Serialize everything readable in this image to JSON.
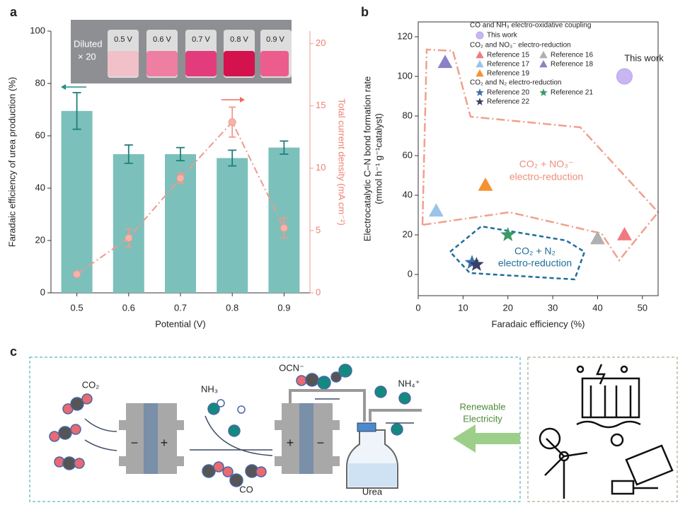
{
  "panel_labels": [
    "a",
    "b",
    "c"
  ],
  "chart_data": [
    {
      "type": "bar",
      "xlabel": "Potential (V)",
      "ylabel": "Faradaic efficiency of urea production (%)",
      "y2label": "Total current density (mA cm⁻²)",
      "categories": [
        "0.5",
        "0.6",
        "0.7",
        "0.8",
        "0.9"
      ],
      "ylim": [
        0,
        100
      ],
      "yticks": [
        0,
        20,
        40,
        60,
        80,
        100
      ],
      "y2lim": [
        0,
        21
      ],
      "y2ticks": [
        0,
        5,
        10,
        15,
        20
      ],
      "series": [
        {
          "type": "bar",
          "color": "#7cc0bb",
          "error_color": "#1f7f7a",
          "values": [
            69.5,
            53,
            53,
            51.5,
            55.5
          ],
          "errors": [
            7,
            3.5,
            2.5,
            3,
            2.5
          ]
        },
        {
          "type": "line",
          "axis": "y2",
          "color": "#ef9a8e",
          "values": [
            1.5,
            4.4,
            9.2,
            13.7,
            5.2
          ],
          "errors": [
            0.1,
            0.7,
            0.4,
            1.2,
            0.8
          ]
        }
      ],
      "inset": {
        "text": [
          "Diluted",
          "× 20"
        ],
        "vial_labels": [
          "0.5 V",
          "0.6 V",
          "0.7 V",
          "0.8 V",
          "0.9 V"
        ]
      }
    },
    {
      "type": "scatter",
      "xlabel": "Faradaic efficiency (%)",
      "ylabel": [
        "Electrocatalytic C–N bond formation rate",
        "(mmol h⁻¹ g⁻¹catalyst)"
      ],
      "xlim": [
        0,
        53.5
      ],
      "xticks": [
        0,
        10,
        20,
        30,
        40,
        50
      ],
      "ylim": [
        -10.7,
        127.5
      ],
      "yticks": [
        0,
        20,
        40,
        60,
        80,
        100,
        120
      ],
      "annotations": {
        "this_work": "This work",
        "no3_region": [
          "CO₂ + NO₃⁻",
          "electro-reduction"
        ],
        "n2_region": [
          "CO₂ + N₂",
          "electro-reduction"
        ]
      },
      "groups": [
        {
          "title": "CO and NH₃ electro-oxidative coupling",
          "series": [
            {
              "name": "This work",
              "marker": "circle",
              "color": "#c8b6f2",
              "x": [
                46
              ],
              "values": [
                100
              ]
            }
          ]
        },
        {
          "title": "CO₂ and NO₃⁻ electro-reduction",
          "series": [
            {
              "name": "Reference 15",
              "marker": "triangle",
              "color": "#f07a80",
              "x": [
                46
              ],
              "values": [
                20
              ]
            },
            {
              "name": "Reference 16",
              "marker": "triangle",
              "color": "#b0b0b0",
              "x": [
                40
              ],
              "values": [
                18
              ]
            },
            {
              "name": "Reference 17",
              "marker": "triangle",
              "color": "#9cc4e8",
              "x": [
                4
              ],
              "values": [
                32
              ]
            },
            {
              "name": "Reference 18",
              "marker": "triangle",
              "color": "#8a82c8",
              "x": [
                6
              ],
              "values": [
                107
              ]
            },
            {
              "name": "Reference 19",
              "marker": "triangle",
              "color": "#f5922e",
              "x": [
                15
              ],
              "values": [
                45
              ]
            }
          ]
        },
        {
          "title": "CO₂ and N₂ electro-reduction",
          "series": [
            {
              "name": "Reference 20",
              "marker": "star",
              "color": "#3c6fa8",
              "x": [
                12
              ],
              "values": [
                6
              ]
            },
            {
              "name": "Reference 21",
              "marker": "star",
              "color": "#3a9a66",
              "x": [
                20
              ],
              "values": [
                20
              ]
            },
            {
              "name": "Reference 22",
              "marker": "star",
              "color": "#3b3f66",
              "x": [
                13
              ],
              "values": [
                5
              ]
            }
          ]
        }
      ]
    }
  ],
  "diagram": {
    "co2": "CO₂",
    "nh3": "NH₃",
    "ocn": "OCN⁻",
    "nh4": "NH₄⁺",
    "co": "CO",
    "urea": "Urea",
    "cell1": [
      "−",
      "+"
    ],
    "cell2": [
      "+",
      "−"
    ],
    "renewable": [
      "Renewable",
      "Electricity"
    ]
  }
}
